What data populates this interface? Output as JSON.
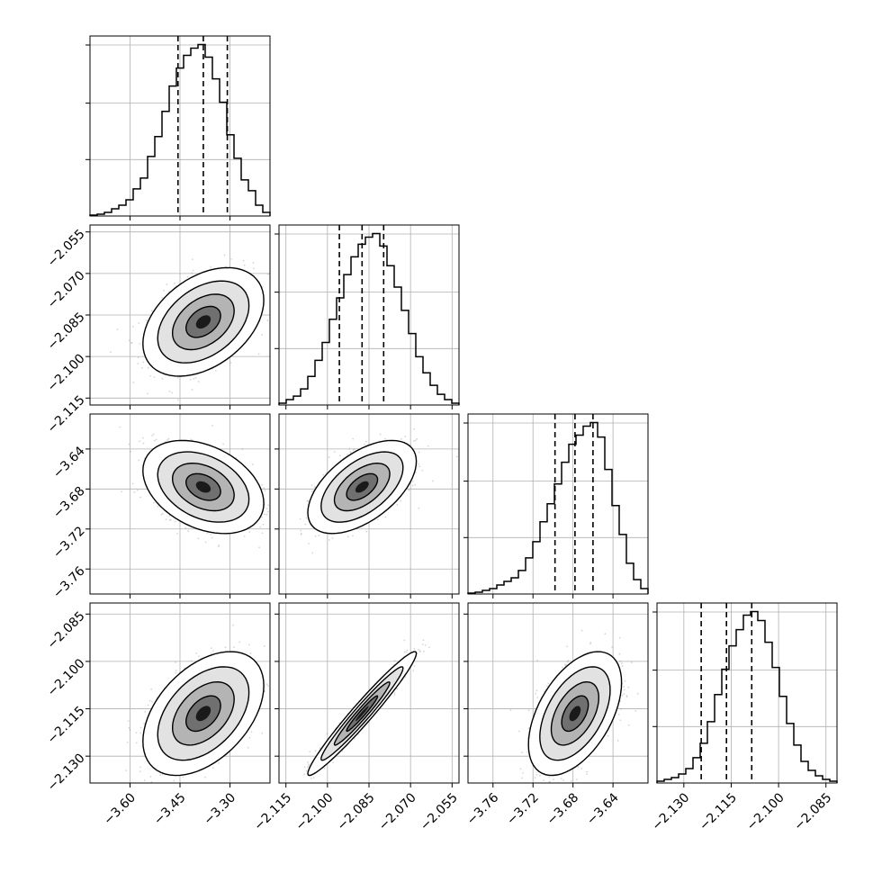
{
  "chart_data": {
    "type": "corner",
    "grid": true,
    "variables": [
      {
        "range": [
          -3.72,
          -3.18
        ],
        "ticks": [
          "−3.60",
          "−3.45",
          "−3.30"
        ],
        "tick_values": [
          -3.6,
          -3.45,
          -3.3
        ],
        "quantiles": [
          -3.456,
          -3.38,
          -3.308
        ]
      },
      {
        "range": [
          -2.1175,
          -2.0525
        ],
        "ticks": [
          "−2.115",
          "−2.100",
          "−2.085",
          "−2.070",
          "−2.055"
        ],
        "tick_values": [
          -2.115,
          -2.1,
          -2.085,
          -2.07,
          -2.055
        ],
        "quantiles": [
          -2.0957,
          -2.0875,
          -2.0797
        ]
      },
      {
        "range": [
          -3.785,
          -3.605
        ],
        "ticks": [
          "−3.76",
          "−3.72",
          "−3.68",
          "−3.64"
        ],
        "tick_values": [
          -3.76,
          -3.72,
          -3.68,
          -3.64
        ],
        "quantiles": [
          -3.698,
          -3.678,
          -3.66
        ]
      },
      {
        "range": [
          -2.1385,
          -2.0815
        ],
        "ticks": [
          "−2.130",
          "−2.115",
          "−2.100",
          "−2.085"
        ],
        "tick_values": [
          -2.13,
          -2.115,
          -2.1,
          -2.085
        ],
        "quantiles": [
          -2.1245,
          -2.1165,
          -2.1085
        ]
      }
    ],
    "histograms": [
      [
        0.5,
        1,
        2,
        4,
        6,
        9,
        15,
        21,
        33,
        44,
        58,
        72,
        82,
        89,
        93,
        95,
        88,
        76,
        63,
        45,
        32,
        20,
        14,
        6,
        2
      ],
      [
        1,
        3,
        5,
        9,
        16,
        25,
        35,
        48,
        60,
        73,
        83,
        90,
        94,
        96,
        89,
        78,
        66,
        53,
        40,
        27,
        18,
        11,
        6,
        3,
        1
      ],
      [
        0.5,
        1,
        2,
        3,
        5,
        7,
        9,
        13,
        20,
        29,
        40,
        50,
        61,
        73,
        83,
        88,
        93,
        95,
        87,
        69,
        49,
        33,
        17,
        8,
        3
      ],
      [
        1,
        2,
        3,
        5,
        8,
        14,
        22,
        34,
        49,
        63,
        76,
        85,
        93,
        95,
        90,
        78,
        64,
        48,
        33,
        21,
        12,
        7,
        4,
        2,
        1
      ]
    ],
    "correlations": {
      "1-0": 0.4,
      "2-0": -0.35,
      "2-1": 0.55,
      "3-0": 0.45,
      "3-1": 0.97,
      "3-2": 0.5
    }
  }
}
